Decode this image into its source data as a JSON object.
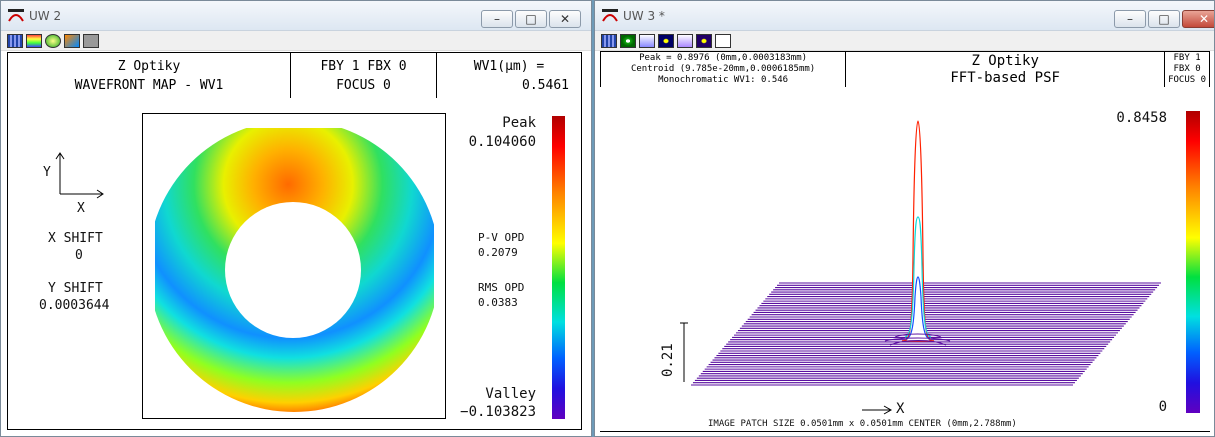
{
  "uw2": {
    "title": "UW 2",
    "header": {
      "app": "Z Optiky",
      "plot": "WAVEFRONT MAP - WV1",
      "fby": "FBY 1  FBX 0",
      "focus": "FOCUS 0",
      "wv_label": "WV1(μm) =",
      "wv_value": "0.5461"
    },
    "axes": {
      "y": "Y",
      "x": "X"
    },
    "shift": {
      "x_label": "X SHIFT",
      "x_value": "0",
      "y_label": "Y SHIFT",
      "y_value": "0.0003644"
    },
    "stats": {
      "peak_label": "Peak",
      "peak_value": "0.104060",
      "pv_label": "P-V OPD",
      "pv_value": "0.2079",
      "rms_label": "RMS OPD",
      "rms_value": "0.0383",
      "valley_label": "Valley",
      "valley_value": "−0.103823"
    }
  },
  "uw3": {
    "title": "UW 3 *",
    "header": {
      "peak": "Peak = 0.8976 (0mm,0.0003183mm)",
      "centroid": "Centroid (9.785e-20mm,0.0006185mm)",
      "mono": "Monochromatic WV1: 0.546",
      "app": "Z Optiky",
      "plot": "FFT-based PSF",
      "fby": "FBY 1",
      "fbx": "FBX 0",
      "focus": "FOCUS 0"
    },
    "colorbar": {
      "max": "0.8458",
      "min": "0"
    },
    "scale_label": "0.21",
    "x_axis": "X",
    "footer": "IMAGE PATCH SIZE 0.0501mm x 0.0501mm    CENTER (0mm,2.788mm)"
  },
  "buttons": {
    "min": "–",
    "max": "□",
    "close": "✕"
  },
  "colors": {
    "desktop": "#6d9ab8",
    "psf_lines": "#5a0fa0",
    "psf_peak": "#ff3000"
  }
}
